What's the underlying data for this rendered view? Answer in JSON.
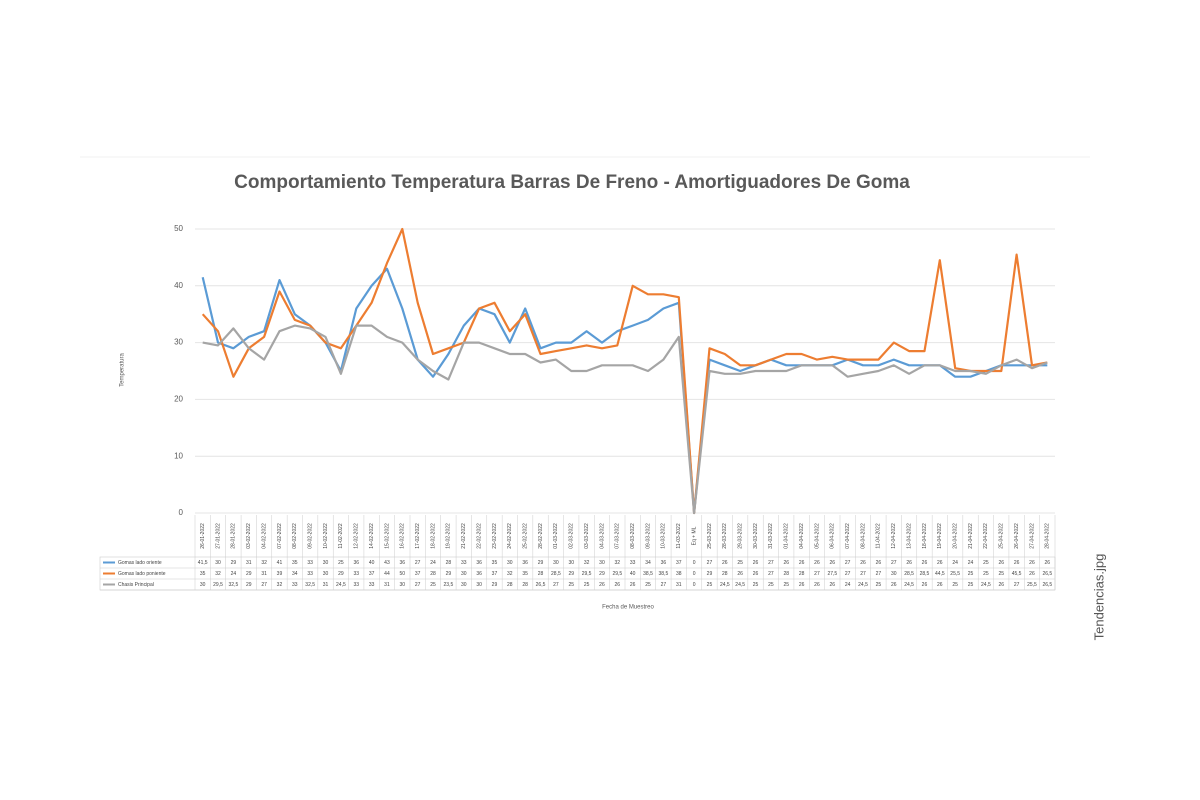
{
  "chart_data": {
    "type": "line",
    "title": "Comportamiento Temperatura Barras De Freno - Amortiguadores  De Goma",
    "y_label": "Temperatura",
    "x_label": "Fecha de Muestreo",
    "caption": "Tendencias.jpg",
    "categories": [
      "26-01-2022",
      "27-01-2022",
      "28-01-2022",
      "03-02-2022",
      "04-02-2022",
      "07-02-2022",
      "08-02-2022",
      "09-02-2022",
      "10-02-2022",
      "11-02-2022",
      "12-02-2022",
      "14-02-2022",
      "15-02-2022",
      "16-02-2022",
      "17-02-2022",
      "18-02-2022",
      "19-02-2022",
      "21-02-2022",
      "22-02-2022",
      "23-02-2022",
      "24-02-2022",
      "25-02-2022",
      "28-02-2022",
      "01-03-2022",
      "02-03-2022",
      "03-03-2022",
      "04-03-2022",
      "07-03-2022",
      "08-03-2022",
      "09-03-2022",
      "10-03-2022",
      "11-03-2022",
      "Eq + ML",
      "25-03-2022",
      "28-03-2022",
      "29-03-2022",
      "30-03-2022",
      "31-03-2022",
      "01-04-2022",
      "04-04-2022",
      "05-04-2022",
      "06-04-2022",
      "07-04-2022",
      "08-04-2022",
      "11-04-2022",
      "12-04-2022",
      "13-04-2022",
      "18-04-2022",
      "19-04-2022",
      "20-04-2022",
      "21-04-2022",
      "22-04-2022",
      "25-04-2022",
      "26-04-2022",
      "27-04-2022",
      "28-04-2022"
    ],
    "ylim": [
      0,
      50
    ],
    "yticks": [
      0,
      10,
      20,
      30,
      40,
      50
    ],
    "grid": true,
    "series": [
      {
        "name": "Gomas lado oriente",
        "color": "#5b9bd5",
        "values": [
          41.5,
          30,
          29,
          31,
          32,
          41,
          35,
          33,
          30,
          25,
          36,
          40,
          43,
          36,
          27,
          24,
          28,
          33,
          36,
          35,
          30,
          36,
          29,
          30,
          30,
          32,
          30,
          32,
          33,
          34,
          36,
          37,
          0,
          27,
          26,
          25,
          26,
          27,
          26,
          26,
          26,
          26,
          27,
          26,
          26,
          27,
          26,
          26,
          26,
          24,
          24,
          25,
          26,
          26,
          26,
          26
        ],
        "value_labels": [
          "41,5",
          "30",
          "29",
          "31",
          "32",
          "41",
          "35",
          "33",
          "30",
          "25",
          "36",
          "40",
          "43",
          "36",
          "27",
          "24",
          "28",
          "33",
          "36",
          "35",
          "30",
          "36",
          "29",
          "30",
          "30",
          "32",
          "30",
          "32",
          "33",
          "34",
          "36",
          "37",
          "0",
          "27",
          "26",
          "25",
          "26",
          "27",
          "26",
          "26",
          "26",
          "26",
          "27",
          "26",
          "26",
          "27",
          "26",
          "26",
          "26",
          "24",
          "24",
          "25",
          "26",
          "26",
          "26",
          "26"
        ]
      },
      {
        "name": "Gomas lado poniente",
        "color": "#ed7d31",
        "values": [
          35,
          32,
          24,
          29,
          31,
          39,
          34,
          33,
          30,
          29,
          33,
          37,
          44,
          50,
          37,
          28,
          29,
          30,
          36,
          37,
          32,
          35,
          28,
          28.5,
          29,
          29.5,
          29,
          29.5,
          40,
          38.5,
          38.5,
          38,
          0,
          29,
          28,
          26,
          26,
          27,
          28,
          28,
          27,
          27.5,
          27,
          27,
          27,
          30,
          28.5,
          28.5,
          44.5,
          25.5,
          25,
          25,
          25,
          45.5,
          26,
          26.5
        ],
        "value_labels": [
          "35",
          "32",
          "24",
          "29",
          "31",
          "39",
          "34",
          "33",
          "30",
          "29",
          "33",
          "37",
          "44",
          "50",
          "37",
          "28",
          "29",
          "30",
          "36",
          "37",
          "32",
          "35",
          "28",
          "28,5",
          "29",
          "29,5",
          "29",
          "29,5",
          "40",
          "38,5",
          "38,5",
          "38",
          "0",
          "29",
          "28",
          "26",
          "26",
          "27",
          "28",
          "28",
          "27",
          "27,5",
          "27",
          "27",
          "27",
          "30",
          "28,5",
          "28,5",
          "44,5",
          "25,5",
          "25",
          "25",
          "25",
          "45,5",
          "26",
          "26,5"
        ]
      },
      {
        "name": "Chasis Principal",
        "color": "#a5a5a5",
        "values": [
          30,
          29.5,
          32.5,
          29,
          27,
          32,
          33,
          32.5,
          31,
          24.5,
          33,
          33,
          31,
          30,
          27,
          25,
          23.5,
          30,
          30,
          29,
          28,
          28,
          26.5,
          27,
          25,
          25,
          26,
          26,
          26,
          25,
          27,
          31,
          0,
          25,
          24.5,
          24.5,
          25,
          25,
          25,
          26,
          26,
          26,
          24,
          24.5,
          25,
          26,
          24.5,
          26,
          26,
          25,
          25,
          24.5,
          26,
          27,
          25.5,
          26.5
        ],
        "value_labels": [
          "30",
          "29,5",
          "32,5",
          "29",
          "27",
          "32",
          "33",
          "32,5",
          "31",
          "24,5",
          "33",
          "33",
          "31",
          "30",
          "27",
          "25",
          "23,5",
          "30",
          "30",
          "29",
          "28",
          "28",
          "26,5",
          "27",
          "25",
          "25",
          "26",
          "26",
          "26",
          "25",
          "27",
          "31",
          "0",
          "25",
          "24,5",
          "24,5",
          "25",
          "25",
          "25",
          "26",
          "26",
          "26",
          "24",
          "24,5",
          "25",
          "26",
          "24,5",
          "26",
          "26",
          "25",
          "25",
          "24,5",
          "26",
          "27",
          "25,5",
          "26,5"
        ]
      }
    ]
  }
}
